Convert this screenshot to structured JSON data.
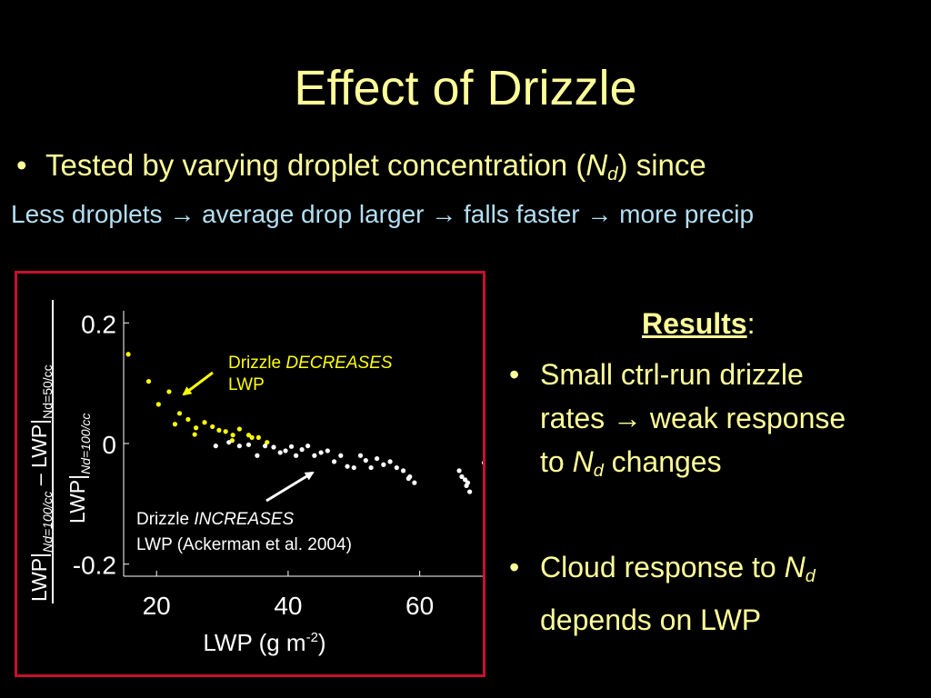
{
  "slide": {
    "title": "Effect of Drizzle",
    "bullet1": {
      "text_before": "Tested by varying droplet concentration (",
      "var": "N",
      "var_sub": "d",
      "text_after": ") since"
    },
    "subline": "Less droplets → average drop larger → falls faster → more precip",
    "results": {
      "heading": "Results",
      "heading_colon": ":",
      "item1_line1": "Small ctrl-run drizzle",
      "item1_line2": "rates → weak response",
      "item1_line3_pre": "to ",
      "item1_var": "N",
      "item1_var_sub": "d",
      "item1_line3_post": " changes",
      "item2_line1_pre": "Cloud response to ",
      "item2_var": "N",
      "item2_var_sub": "d",
      "item2_line2": "depends on LWP"
    },
    "bullet_glyph": "•"
  },
  "colors": {
    "background": "#000000",
    "title": "#ffff99",
    "subline": "#b3dff2",
    "frame": "#c8102e",
    "decrease_points": "#ffff00",
    "increase_points": "#ffffff"
  },
  "chart_data": {
    "type": "scatter",
    "xlabel_main": "LWP (g m",
    "xlabel_sup": "-2",
    "xlabel_close": ")",
    "ylabel_num_main": "LWP|",
    "ylabel_num_sub1": "Nd=100/cc",
    "ylabel_num_mid": " – LWP|",
    "ylabel_num_sub2": "Nd=50/cc",
    "ylabel_den_main": "LWP|",
    "ylabel_den_sub": "Nd=100/cc",
    "xlim": [
      15,
      70
    ],
    "ylim": [
      -0.22,
      0.22
    ],
    "xticks": [
      {
        "value": 20,
        "label": "20"
      },
      {
        "value": 40,
        "label": "40"
      },
      {
        "value": 60,
        "label": "60"
      }
    ],
    "yticks": [
      {
        "value": 0.2,
        "label": "0.2"
      },
      {
        "value": 0,
        "label": "0"
      },
      {
        "value": -0.2,
        "label": "-0.2"
      }
    ],
    "series": [
      {
        "color": "#ffff00",
        "points": [
          [
            15.7,
            0.148
          ],
          [
            18.8,
            0.103
          ],
          [
            20.3,
            0.065
          ],
          [
            21.9,
            0.086
          ],
          [
            23.5,
            0.05
          ],
          [
            24.8,
            0.04
          ],
          [
            26.0,
            0.026
          ],
          [
            27.3,
            0.035
          ],
          [
            28.5,
            0.028
          ],
          [
            29.5,
            0.022
          ],
          [
            30.5,
            0.02
          ],
          [
            31.6,
            0.014
          ],
          [
            32.6,
            0.024
          ],
          [
            34.0,
            0.014
          ],
          [
            35.5,
            0.01
          ],
          [
            36.8,
            0.002
          ],
          [
            22.8,
            0.032
          ],
          [
            25.8,
            0.015
          ],
          [
            31.5,
            0.005
          ],
          [
            34.5,
            0.01
          ]
        ]
      },
      {
        "color": "#ffffff",
        "points": [
          [
            29.0,
            -0.004
          ],
          [
            31.0,
            0.002
          ],
          [
            32.6,
            -0.004
          ],
          [
            34.0,
            -0.002
          ],
          [
            35.3,
            -0.02
          ],
          [
            36.5,
            -0.004
          ],
          [
            37.8,
            -0.006
          ],
          [
            38.8,
            -0.015
          ],
          [
            39.6,
            -0.012
          ],
          [
            40.5,
            -0.005
          ],
          [
            41.2,
            -0.02
          ],
          [
            42.1,
            -0.01
          ],
          [
            43.0,
            -0.004
          ],
          [
            44.0,
            -0.02
          ],
          [
            45.0,
            -0.015
          ],
          [
            46.0,
            -0.012
          ],
          [
            47.0,
            -0.03
          ],
          [
            48.0,
            -0.02
          ],
          [
            49.0,
            -0.038
          ],
          [
            50.0,
            -0.04
          ],
          [
            51.0,
            -0.02
          ],
          [
            51.8,
            -0.028
          ],
          [
            52.6,
            -0.04
          ],
          [
            53.5,
            -0.025
          ],
          [
            54.5,
            -0.035
          ],
          [
            55.5,
            -0.03
          ],
          [
            56.5,
            -0.04
          ],
          [
            57.5,
            -0.045
          ],
          [
            58.5,
            -0.055
          ],
          [
            59.2,
            -0.065
          ],
          [
            66.0,
            -0.045
          ],
          [
            66.4,
            -0.055
          ],
          [
            66.9,
            -0.06
          ],
          [
            67.3,
            -0.065
          ],
          [
            67.6,
            -0.08
          ],
          [
            67.1,
            -0.07
          ],
          [
            69.8,
            -0.032
          ],
          [
            58.3,
            -0.058
          ]
        ]
      }
    ],
    "annotations": {
      "decrease_prefix": "Drizzle ",
      "decrease_italic": "DECREASES",
      "decrease_line2": "LWP",
      "increase_prefix": "Drizzle ",
      "increase_italic": "INCREASES",
      "increase_line2": "LWP (Ackerman et al. 2004)"
    }
  }
}
